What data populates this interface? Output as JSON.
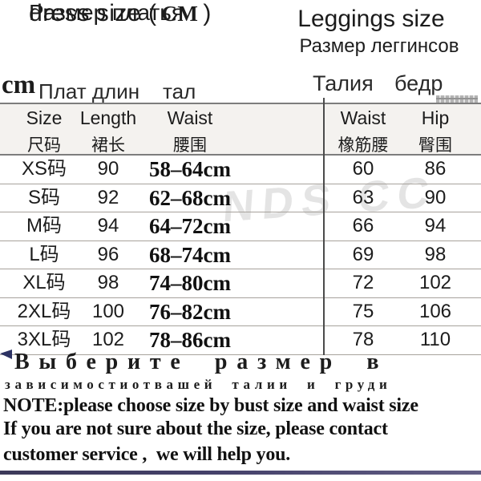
{
  "header": {
    "left": {
      "title_part1": "dress size (",
      "title_cm": "CM",
      "title_part2": ")",
      "subtitle": "Размер платья"
    },
    "right": {
      "title": "Leggings size",
      "subtitle": "Размер леггинсов"
    }
  },
  "axis_labels": {
    "unit": "cm",
    "length_ru": "Плат длин",
    "waist_ru": "тал",
    "leggings_waist_ru": "Талия",
    "leggings_hip_ru": "бедр"
  },
  "table": {
    "columns": [
      {
        "en": "Size",
        "zh": "尺码"
      },
      {
        "en": "Length",
        "zh": "裙长"
      },
      {
        "en": "Waist",
        "zh": "腰围"
      },
      {
        "en": "Waist",
        "zh": "橡筋腰"
      },
      {
        "en": "Hip",
        "zh": "臀围"
      }
    ],
    "rows": [
      {
        "size": "XS码",
        "length": "90",
        "waist": "58–64cm",
        "waist2": "60",
        "hip": "86"
      },
      {
        "size": "S码",
        "length": "92",
        "waist": "62–68cm",
        "waist2": "63",
        "hip": "90"
      },
      {
        "size": "M码",
        "length": "94",
        "waist": "64–72cm",
        "waist2": "66",
        "hip": "94"
      },
      {
        "size": "L码",
        "length": "96",
        "waist": "68–74cm",
        "waist2": "69",
        "hip": "98"
      },
      {
        "size": "XL码",
        "length": "98",
        "waist": "74–80cm",
        "waist2": "72",
        "hip": "102"
      },
      {
        "size": "2XL码",
        "length": "100",
        "waist": "76–82cm",
        "waist2": "75",
        "hip": "106"
      },
      {
        "size": "3XL码",
        "length": "102",
        "waist": "78–86cm",
        "waist2": "78",
        "hip": "110"
      }
    ]
  },
  "watermark": "NDS CC",
  "footer": {
    "ru_line1": "Выберите размер в",
    "ru_line2": "зависимостиотвашей талии и груди",
    "note_line1": "NOTE:please choose size by bust size and waist size",
    "note_line2": "If you are not sure about the size, please contact",
    "note_line3": "customer service ,  we will help you."
  },
  "colors": {
    "accent_bar": "#45416a",
    "header_band": "#f4f2ef",
    "divider": "#4b4b4b"
  }
}
